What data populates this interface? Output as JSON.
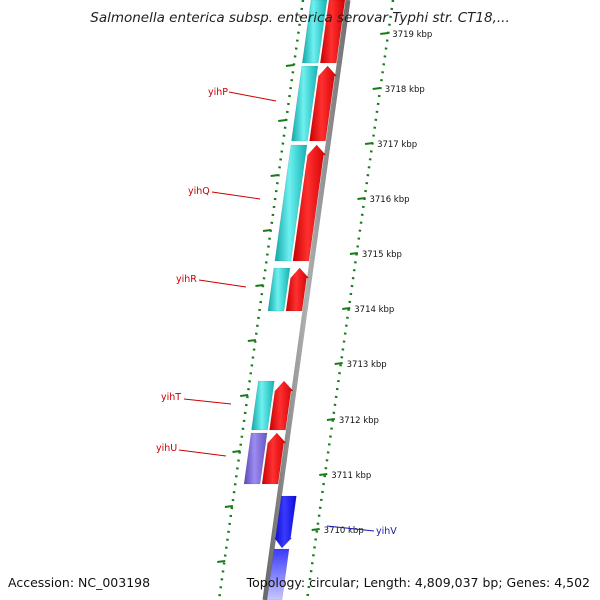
{
  "title": "Salmonella enterica subsp. enterica serovar Typhi str. CT18,...",
  "accession": "Accession: NC_003198",
  "topology": "Topology: circular; Length: 4,809,037 bp; Genes: 4,502",
  "colors": {
    "cyan": "#22c8c8",
    "red": "#ee1111",
    "purple": "#7b68d6",
    "blue": "#1515ee",
    "label_red": "#cc0000",
    "label_blue": "#1a1aaa",
    "tick_green": "#1a7a1a",
    "backbone": "#808080"
  },
  "scale_ticks": [
    "3719 kbp",
    "3718 kbp",
    "3717 kbp",
    "3716 kbp",
    "3715 kbp",
    "3714 kbp",
    "3713 kbp",
    "3712 kbp",
    "3711 kbp",
    "3710 kbp"
  ],
  "gene_labels": [
    {
      "text": "yihP",
      "color": "red"
    },
    {
      "text": "yihQ",
      "color": "red"
    },
    {
      "text": "yihR",
      "color": "red"
    },
    {
      "text": "yihT",
      "color": "red"
    },
    {
      "text": "yihU",
      "color": "red"
    },
    {
      "text": "yihV",
      "color": "blue"
    }
  ]
}
